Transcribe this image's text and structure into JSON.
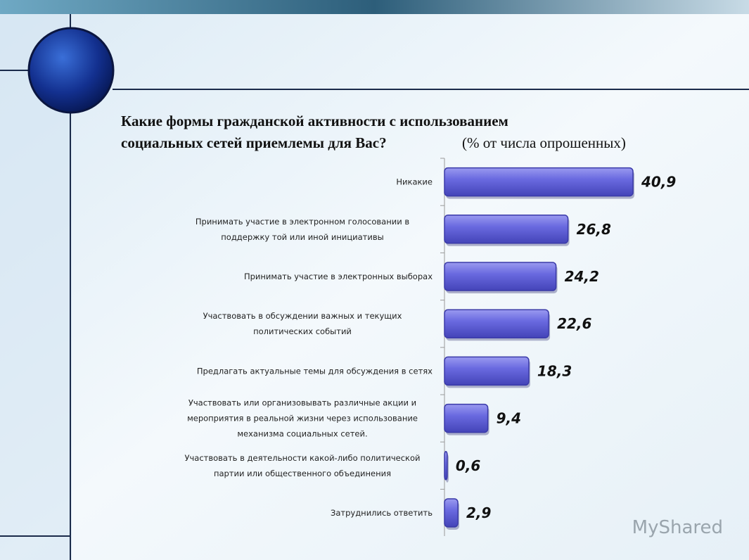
{
  "chart_data": {
    "type": "bar",
    "orientation": "horizontal",
    "title": "Какие формы гражданской активности с использованием социальных сетей приемлемы для Вас?",
    "subtitle": "(% от числа опрошенных)",
    "categories": [
      "Никакие",
      "Принимать участие в электронном голосовании в\nподдержку той или иной инициативы",
      "Принимать участие в электронных выборах",
      "Участвовать в обсуждении важных и текущих\nполитических событий",
      "Предлагать  актуальные темы для обсуждения в сетях",
      "Участвовать или организовывать различные акции и\nмероприятия в реальной жизни через использование\nмеханизма социальных сетей.",
      "Участвовать в деятельности какой-либо политической\nпартии или общественного объединения",
      "Затруднились ответить"
    ],
    "values": [
      40.9,
      26.8,
      24.2,
      22.6,
      18.3,
      9.4,
      0.6,
      2.9
    ],
    "value_labels": [
      "40,9",
      "26,8",
      "24,2",
      "22,6",
      "18,3",
      "9,4",
      "0,6",
      "2,9"
    ],
    "color": "#6a6ae0",
    "watermark": "MyShared"
  }
}
